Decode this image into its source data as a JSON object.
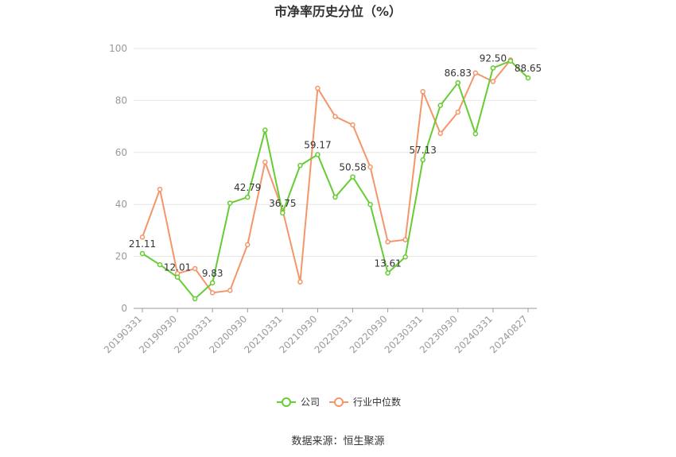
{
  "chart_data": {
    "type": "line",
    "title": "市净率历史分位（%）",
    "xlabel": "",
    "ylabel": "",
    "ylim": [
      0,
      100
    ],
    "yticks": [
      0,
      20,
      40,
      60,
      80,
      100
    ],
    "x": [
      "20190331",
      "20190630",
      "20190930",
      "20191231",
      "20200331",
      "20200630",
      "20200930",
      "20201231",
      "20210331",
      "20210630",
      "20210930",
      "20211231",
      "20220331",
      "20220630",
      "20220930",
      "20221231",
      "20230331",
      "20230630",
      "20230930",
      "20231231",
      "20240331",
      "20240630",
      "20240827"
    ],
    "xtick_labels": [
      "20190331",
      "20190930",
      "20200331",
      "20200930",
      "20210331",
      "20210930",
      "20220331",
      "20220930",
      "20230331",
      "20230930",
      "20240331",
      "20240827"
    ],
    "series": [
      {
        "name": "公司",
        "color": "#66cc33",
        "values": [
          21.11,
          16.8,
          12.01,
          3.7,
          9.83,
          40.5,
          42.79,
          68.6,
          36.75,
          55.0,
          59.17,
          42.8,
          50.58,
          40.0,
          13.61,
          19.8,
          57.13,
          78.1,
          86.83,
          67.2,
          92.5,
          95.2,
          88.65
        ]
      },
      {
        "name": "行业中位数",
        "color": "#f5956a",
        "values": [
          27.4,
          45.8,
          13.4,
          15.3,
          6.0,
          6.9,
          24.5,
          56.3,
          37.8,
          10.2,
          84.7,
          73.8,
          70.6,
          54.4,
          25.6,
          26.4,
          83.4,
          67.3,
          75.5,
          90.6,
          87.3,
          95.6,
          null
        ]
      }
    ],
    "data_labels": [
      {
        "series": 0,
        "index": 0,
        "text": "21.11"
      },
      {
        "series": 0,
        "index": 2,
        "text": "12.01"
      },
      {
        "series": 0,
        "index": 4,
        "text": "9.83"
      },
      {
        "series": 0,
        "index": 6,
        "text": "42.79"
      },
      {
        "series": 0,
        "index": 8,
        "text": "36.75"
      },
      {
        "series": 0,
        "index": 10,
        "text": "59.17"
      },
      {
        "series": 0,
        "index": 12,
        "text": "50.58"
      },
      {
        "series": 0,
        "index": 14,
        "text": "13.61"
      },
      {
        "series": 0,
        "index": 16,
        "text": "57.13"
      },
      {
        "series": 0,
        "index": 18,
        "text": "86.83"
      },
      {
        "series": 0,
        "index": 20,
        "text": "92.50"
      },
      {
        "series": 0,
        "index": 22,
        "text": "88.65"
      }
    ],
    "grid": true,
    "legend_position": "bottom"
  },
  "source_text": "数据来源：恒生聚源"
}
